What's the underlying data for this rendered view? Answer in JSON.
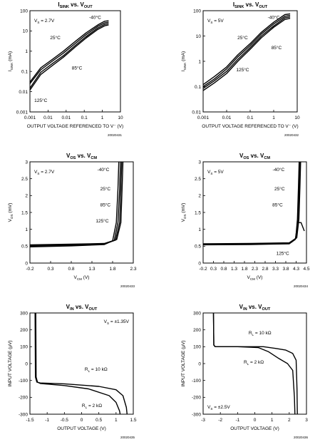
{
  "charts": [
    {
      "title_main": "I",
      "title_sub": "SINK",
      "title_mid": " vs. V",
      "title_sub2": "OUT",
      "condition": "V_S = 2.7V",
      "xlabel": "OUTPUT VOLTAGE REFERENCED TO V⁻ (V)",
      "ylabel_main": "I",
      "ylabel_sub": "SINK",
      "ylabel_unit": " (mA)",
      "fig_id": "20020431"
    },
    {
      "title_main": "I",
      "title_sub": "SINK",
      "title_mid": " vs. V",
      "title_sub2": "OUT",
      "condition": "V_S = 5V",
      "xlabel": "OUTPUT VOLTAGE REFERENCED TO V⁻ (V)",
      "ylabel_main": "I",
      "ylabel_sub": "SINK",
      "ylabel_unit": " (mA)",
      "fig_id": "20020432"
    },
    {
      "title_main": "V",
      "title_sub": "OS",
      "title_mid": " vs. V",
      "title_sub2": "CM",
      "condition": "V_S = 2.7V",
      "xlabel_main": "V",
      "xlabel_sub": "CM",
      "xlabel_unit": " (V)",
      "ylabel_main": "V",
      "ylabel_sub": "OS",
      "ylabel_unit": " (mV)",
      "fig_id": "20020433"
    },
    {
      "title_main": "V",
      "title_sub": "OS",
      "title_mid": " vs. V",
      "title_sub2": "CM",
      "condition": "V_S = 5V",
      "xlabel_main": "V",
      "xlabel_sub": "CM",
      "xlabel_unit": " (V)",
      "ylabel_main": "V",
      "ylabel_sub": "OS",
      "ylabel_unit": " (mV)",
      "fig_id": "20020434"
    },
    {
      "title_main": "V",
      "title_sub": "IN",
      "title_mid": " vs. V",
      "title_sub2": "OUT",
      "condition": "V_S = ±1.35V",
      "xlabel": "OUTPUT VOLTAGE (V)",
      "ylabel": "INPUT VOLTAGE (μV)",
      "fig_id": "20020435"
    },
    {
      "title_main": "V",
      "title_sub": "IN",
      "title_mid": " vs. V",
      "title_sub2": "OUT",
      "condition": "V_S = ±2.5V",
      "xlabel": "OUTPUT VOLTAGE (V)",
      "ylabel": "INPUT VOLTAGE (μV)",
      "fig_id": "20020436"
    }
  ],
  "chart_data": [
    {
      "type": "line",
      "y_scale": "log",
      "x_scale": "log",
      "xlim": [
        0.001,
        10
      ],
      "ylim": [
        0.001,
        100
      ],
      "xticks": [
        "0.001",
        "0.01",
        "0.01",
        "0.1",
        "1",
        "10"
      ],
      "yticks": [
        "0.001",
        "0.01",
        "0.1",
        "1",
        "10",
        "100"
      ],
      "series": [
        {
          "name": "-40°C",
          "x": [
            0.001,
            0.003,
            0.01,
            0.03,
            0.1,
            0.3,
            1,
            2,
            3
          ],
          "y": [
            0.03,
            0.15,
            0.4,
            1.0,
            3.0,
            8.0,
            20,
            30,
            32
          ]
        },
        {
          "name": "25°C",
          "x": [
            0.001,
            0.003,
            0.01,
            0.03,
            0.1,
            0.3,
            1,
            2,
            3
          ],
          "y": [
            0.025,
            0.12,
            0.33,
            0.8,
            2.4,
            6.5,
            17,
            25,
            27
          ]
        },
        {
          "name": "85°C",
          "x": [
            0.001,
            0.003,
            0.01,
            0.03,
            0.1,
            0.3,
            1,
            2,
            3
          ],
          "y": [
            0.015,
            0.09,
            0.25,
            0.6,
            1.9,
            5.2,
            14,
            21,
            23
          ]
        },
        {
          "name": "125°C",
          "x": [
            0.001,
            0.003,
            0.01,
            0.03,
            0.1,
            0.3,
            1,
            2,
            3
          ],
          "y": [
            0.012,
            0.07,
            0.2,
            0.5,
            1.6,
            4.4,
            12,
            18,
            20
          ]
        }
      ]
    },
    {
      "type": "line",
      "y_scale": "log",
      "x_scale": "log",
      "xlim": [
        0.001,
        10
      ],
      "ylim": [
        0.01,
        100
      ],
      "xticks": [
        "0.001",
        "0.01",
        "0.1",
        "1",
        "10"
      ],
      "yticks": [
        "0.01",
        "0.1",
        "1",
        "10",
        "100"
      ],
      "series": [
        {
          "name": "-40°C",
          "x": [
            0.001,
            0.003,
            0.01,
            0.03,
            0.1,
            0.3,
            1,
            3,
            5
          ],
          "y": [
            0.12,
            0.25,
            0.6,
            1.8,
            5.0,
            14,
            35,
            70,
            75
          ]
        },
        {
          "name": "25°C",
          "x": [
            0.001,
            0.003,
            0.01,
            0.03,
            0.1,
            0.3,
            1,
            3,
            5
          ],
          "y": [
            0.1,
            0.2,
            0.5,
            1.5,
            4.2,
            12,
            30,
            60,
            65
          ]
        },
        {
          "name": "85°C",
          "x": [
            0.001,
            0.003,
            0.01,
            0.03,
            0.1,
            0.3,
            1,
            3,
            5
          ],
          "y": [
            0.085,
            0.17,
            0.4,
            1.2,
            3.5,
            10,
            25,
            52,
            57
          ]
        },
        {
          "name": "125°C",
          "x": [
            0.001,
            0.003,
            0.01,
            0.03,
            0.1,
            0.3,
            1,
            3,
            5
          ],
          "y": [
            0.07,
            0.14,
            0.33,
            1.0,
            3.0,
            8.5,
            22,
            45,
            50
          ]
        }
      ]
    },
    {
      "type": "line",
      "xlim": [
        -0.2,
        2.3
      ],
      "ylim": [
        0,
        3
      ],
      "xticks": [
        "-0.2",
        "0.3",
        "0.8",
        "1.3",
        "1.8",
        "2.3"
      ],
      "yticks": [
        "0",
        "0.5",
        "1",
        "1.5",
        "2",
        "2.5",
        "3"
      ],
      "series": [
        {
          "name": "-40°C",
          "x": [
            -0.2,
            0.8,
            1.6,
            1.9,
            2.0,
            2.03,
            2.05
          ],
          "y": [
            0.54,
            0.56,
            0.58,
            0.7,
            1.2,
            2.2,
            3.0
          ]
        },
        {
          "name": "25°C",
          "x": [
            -0.2,
            0.8,
            1.6,
            1.87,
            1.97,
            2.0,
            2.02
          ],
          "y": [
            0.52,
            0.54,
            0.57,
            0.68,
            1.2,
            2.2,
            3.0
          ]
        },
        {
          "name": "85°C",
          "x": [
            -0.2,
            0.8,
            1.6,
            1.84,
            1.93,
            1.97,
            1.99
          ],
          "y": [
            0.5,
            0.53,
            0.56,
            0.67,
            1.2,
            2.2,
            3.0
          ]
        },
        {
          "name": "125°C",
          "x": [
            -0.2,
            0.8,
            1.6,
            1.8,
            1.89,
            1.93,
            1.95
          ],
          "y": [
            0.48,
            0.51,
            0.55,
            0.66,
            1.2,
            2.2,
            3.0
          ]
        }
      ]
    },
    {
      "type": "line",
      "xlim": [
        -0.2,
        4.6
      ],
      "ylim": [
        0,
        3
      ],
      "xticks": [
        "-0.2",
        "0.3",
        "0.8",
        "1.3",
        "1.8",
        "2.3",
        "2.8",
        "3.3",
        "3.8",
        "4.3",
        "4.5"
      ],
      "yticks": [
        "0",
        "0.5",
        "1",
        "1.5",
        "2",
        "2.5",
        "3"
      ],
      "series": [
        {
          "name": "-40°C",
          "x": [
            -0.2,
            2.0,
            3.8,
            4.15,
            4.25,
            4.3,
            4.33
          ],
          "y": [
            0.57,
            0.58,
            0.6,
            0.75,
            1.3,
            2.3,
            3.0
          ]
        },
        {
          "name": "25°C",
          "x": [
            -0.2,
            2.0,
            3.8,
            4.12,
            4.22,
            4.27,
            4.3
          ],
          "y": [
            0.56,
            0.57,
            0.59,
            0.74,
            1.3,
            2.3,
            3.0
          ]
        },
        {
          "name": "85°C",
          "x": [
            -0.2,
            2.0,
            3.8,
            4.1,
            4.18,
            4.23,
            4.26
          ],
          "y": [
            0.55,
            0.56,
            0.58,
            0.72,
            1.3,
            2.3,
            3.0
          ]
        },
        {
          "name": "125°C",
          "x": [
            -0.2,
            2.0,
            3.8,
            4.08,
            4.2,
            4.35,
            4.5
          ],
          "y": [
            0.54,
            0.55,
            0.57,
            0.7,
            1.2,
            1.2,
            0.95
          ]
        }
      ]
    },
    {
      "type": "line",
      "xlim": [
        -1.5,
        1.5
      ],
      "ylim": [
        -300,
        300
      ],
      "xticks": [
        "-1.5",
        "-1",
        "-0.5",
        "0",
        "0.5",
        "1",
        "1.5"
      ],
      "yticks": [
        "300",
        "200",
        "100",
        "0",
        "-100",
        "-200",
        "-300"
      ],
      "series": [
        {
          "name": "R_L = 10 kΩ",
          "x": [
            -1.35,
            -1.34,
            -1.3,
            -1.2,
            -0.5,
            0.5,
            1.0,
            1.2,
            1.3,
            1.32
          ],
          "y": [
            300,
            -80,
            -110,
            -115,
            -120,
            -135,
            -155,
            -190,
            -260,
            -300
          ]
        },
        {
          "name": "R_L = 2 kΩ",
          "x": [
            -1.33,
            -1.32,
            -1.28,
            -1.2,
            -0.5,
            0.2,
            0.8,
            1.0,
            1.1,
            1.12
          ],
          "y": [
            300,
            -80,
            -110,
            -118,
            -130,
            -150,
            -190,
            -230,
            -280,
            -300
          ]
        }
      ]
    },
    {
      "type": "line",
      "xlim": [
        -3,
        3
      ],
      "ylim": [
        -300,
        300
      ],
      "xticks": [
        "-3",
        "-2",
        "-1",
        "0",
        "1",
        "2",
        "3"
      ],
      "yticks": [
        "300",
        "200",
        "100",
        "0",
        "-100",
        "-200",
        "-300"
      ],
      "series": [
        {
          "name": "R_L = 10 kΩ",
          "x": [
            -2.4,
            -2.38,
            -2.3,
            -1.0,
            0.5,
            1.2,
            1.8,
            2.2,
            2.4,
            2.45,
            2.47
          ],
          "y": [
            300,
            110,
            100,
            100,
            100,
            90,
            80,
            60,
            20,
            -150,
            -300
          ]
        },
        {
          "name": "R_L = 2 kΩ",
          "x": [
            -2.4,
            -2.38,
            -2.3,
            -1.0,
            0.2,
            0.8,
            1.4,
            1.9,
            2.2,
            2.3,
            2.33
          ],
          "y": [
            300,
            110,
            100,
            100,
            95,
            70,
            30,
            0,
            -40,
            -200,
            -300
          ]
        }
      ]
    }
  ]
}
